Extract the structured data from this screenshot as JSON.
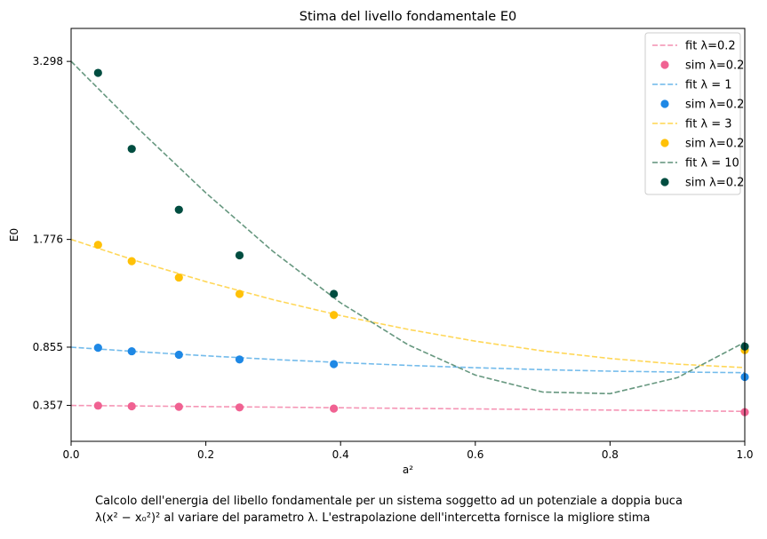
{
  "chart_data": {
    "type": "line",
    "title": "Stima del livello fondamentale E0",
    "xlabel": "a²",
    "ylabel": "E0",
    "xlim": [
      0,
      1.0
    ],
    "ylim": [
      0.05,
      3.58
    ],
    "xticks": [
      0,
      0.2,
      0.4,
      0.6,
      0.8,
      1.0
    ],
    "xtick_labels": [
      "0.0",
      "0.2",
      "0.4",
      "0.6",
      "0.8",
      "1.0"
    ],
    "yticks": [
      0.357,
      0.855,
      1.776,
      3.298
    ],
    "ytick_labels": [
      "0.357",
      "0.855",
      "1.776",
      "3.298"
    ],
    "grid": false,
    "legend_position": "top-right",
    "series": [
      {
        "name": "fit λ=0.2",
        "kind": "fit",
        "style": "dashed",
        "color": "#f48fb1",
        "x": [
          0,
          0.1,
          0.2,
          0.3,
          0.4,
          0.5,
          0.6,
          0.7,
          0.8,
          0.9,
          1.0
        ],
        "y": [
          0.357,
          0.352,
          0.347,
          0.342,
          0.337,
          0.332,
          0.327,
          0.322,
          0.317,
          0.312,
          0.306
        ]
      },
      {
        "name": "sim λ=0.2",
        "kind": "sim",
        "style": "marker",
        "color": "#f06292",
        "x": [
          0.04,
          0.09,
          0.16,
          0.25,
          0.39,
          1.0
        ],
        "y": [
          0.355,
          0.35,
          0.345,
          0.34,
          0.33,
          0.3
        ]
      },
      {
        "name": "fit λ = 1",
        "kind": "fit",
        "style": "dashed",
        "color": "#6bb7ea",
        "x": [
          0,
          0.1,
          0.2,
          0.3,
          0.4,
          0.5,
          0.6,
          0.7,
          0.8,
          0.9,
          1.0
        ],
        "y": [
          0.855,
          0.816,
          0.781,
          0.75,
          0.723,
          0.699,
          0.679,
          0.663,
          0.65,
          0.642,
          0.637
        ]
      },
      {
        "name": "sim λ=0.2",
        "kind": "sim",
        "style": "marker",
        "color": "#1e88e5",
        "x": [
          0.04,
          0.09,
          0.16,
          0.25,
          0.39,
          1.0
        ],
        "y": [
          0.85,
          0.82,
          0.79,
          0.75,
          0.71,
          0.6
        ]
      },
      {
        "name": "fit λ = 3",
        "kind": "fit",
        "style": "dashed",
        "color": "#ffd54f",
        "x": [
          0,
          0.1,
          0.2,
          0.3,
          0.4,
          0.5,
          0.6,
          0.7,
          0.8,
          0.9,
          1.0
        ],
        "y": [
          1.776,
          1.587,
          1.415,
          1.261,
          1.125,
          1.007,
          0.906,
          0.823,
          0.758,
          0.71,
          0.68
        ]
      },
      {
        "name": "sim λ=0.2",
        "kind": "sim",
        "style": "marker",
        "color": "#ffc107",
        "x": [
          0.04,
          0.09,
          0.16,
          0.25,
          0.39,
          1.0
        ],
        "y": [
          1.73,
          1.59,
          1.45,
          1.31,
          1.13,
          0.83
        ]
      },
      {
        "name": "fit λ = 10",
        "kind": "fit",
        "style": "dashed",
        "color": "#5e9178",
        "x": [
          0,
          0.1,
          0.2,
          0.3,
          0.4,
          0.5,
          0.6,
          0.7,
          0.8,
          0.9,
          1.0
        ],
        "y": [
          3.298,
          2.721,
          2.174,
          1.672,
          1.234,
          0.876,
          0.616,
          0.471,
          0.458,
          0.594,
          0.897
        ]
      },
      {
        "name": "sim λ=0.2",
        "kind": "sim",
        "style": "marker",
        "color": "#004d40",
        "x": [
          0.04,
          0.09,
          0.16,
          0.25,
          0.39,
          1.0
        ],
        "y": [
          3.2,
          2.55,
          2.03,
          1.64,
          1.31,
          0.86
        ]
      }
    ]
  },
  "caption": {
    "line1": "Calcolo dell'energia del libello fondamentale per un sistema soggetto ad un potenziale a doppia buca",
    "line2": "λ(x² − x₀²)² al variare del parametro λ. L'estrapolazione dell'intercetta fornisce la migliore stima"
  }
}
